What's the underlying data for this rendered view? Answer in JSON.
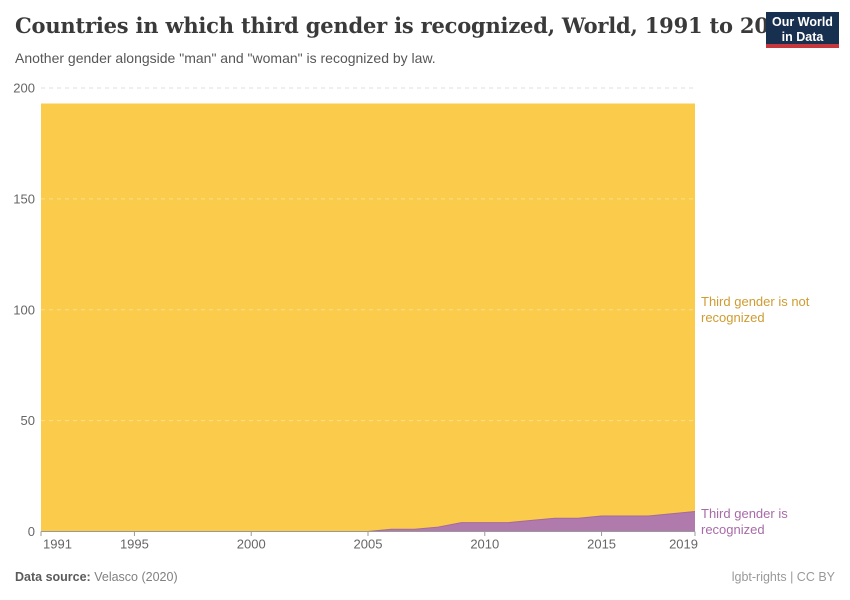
{
  "header": {
    "title": "Countries in which third gender is recognized, World, 1991 to 2019",
    "subtitle": "Another gender alongside \"man\" and \"woman\" is recognized by law.",
    "logo": {
      "line1": "Our World",
      "line2": "in Data",
      "bg_color": "#18304F",
      "accent_color": "#C5383E"
    }
  },
  "chart_data": {
    "type": "area",
    "stacked": true,
    "title": "Countries in which third gender is recognized, World, 1991 to 2019",
    "xlabel": "",
    "ylabel": "",
    "ylim": [
      0,
      200
    ],
    "yticks": [
      0,
      50,
      100,
      150,
      200
    ],
    "xticks": [
      1991,
      1995,
      2000,
      2005,
      2010,
      2015,
      2019
    ],
    "grid": "horizontal-dashed",
    "legend_position": "right-entity-labels",
    "total_countries": 193,
    "x": [
      1991,
      1992,
      1993,
      1994,
      1995,
      1996,
      1997,
      1998,
      1999,
      2000,
      2001,
      2002,
      2003,
      2004,
      2005,
      2006,
      2007,
      2008,
      2009,
      2010,
      2011,
      2012,
      2013,
      2014,
      2015,
      2016,
      2017,
      2018,
      2019
    ],
    "series": [
      {
        "name": "Third gender is recognized",
        "color": "#B07AAD",
        "edge_color": "#A5699F",
        "values": [
          0,
          0,
          0,
          0,
          0,
          0,
          0,
          0,
          0,
          0,
          0,
          0,
          0,
          0,
          0,
          1,
          1,
          2,
          4,
          4,
          4,
          5,
          6,
          6,
          7,
          7,
          7,
          8,
          9
        ]
      },
      {
        "name": "Third gender is not recognized",
        "color": "#FBCC4B",
        "edge_color": "#FBCC4B",
        "values": [
          193,
          193,
          193,
          193,
          193,
          193,
          193,
          193,
          193,
          193,
          193,
          193,
          193,
          193,
          193,
          192,
          192,
          191,
          189,
          189,
          189,
          188,
          187,
          187,
          186,
          186,
          186,
          185,
          184
        ]
      }
    ]
  },
  "series_labels": {
    "not_recognized": {
      "text": "Third gender is not recognized",
      "color": "#CF9C30"
    },
    "recognized": {
      "text": "Third gender is recognized",
      "color": "#A86BA8"
    }
  },
  "footer": {
    "source_label": "Data source:",
    "source_value": "Velasco (2020)",
    "credit": "lgbt-rights | CC BY"
  }
}
